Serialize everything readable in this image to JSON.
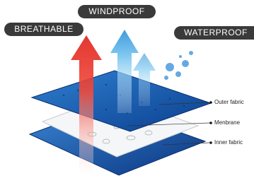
{
  "features": {
    "breathable": "BREATHABLE",
    "windproof": "WINDPROOF",
    "waterproof": "WATERPROOF"
  },
  "layers": [
    {
      "label": "Outer fabric"
    },
    {
      "label": "Menbrane"
    },
    {
      "label": "Inner fabric"
    }
  ]
}
